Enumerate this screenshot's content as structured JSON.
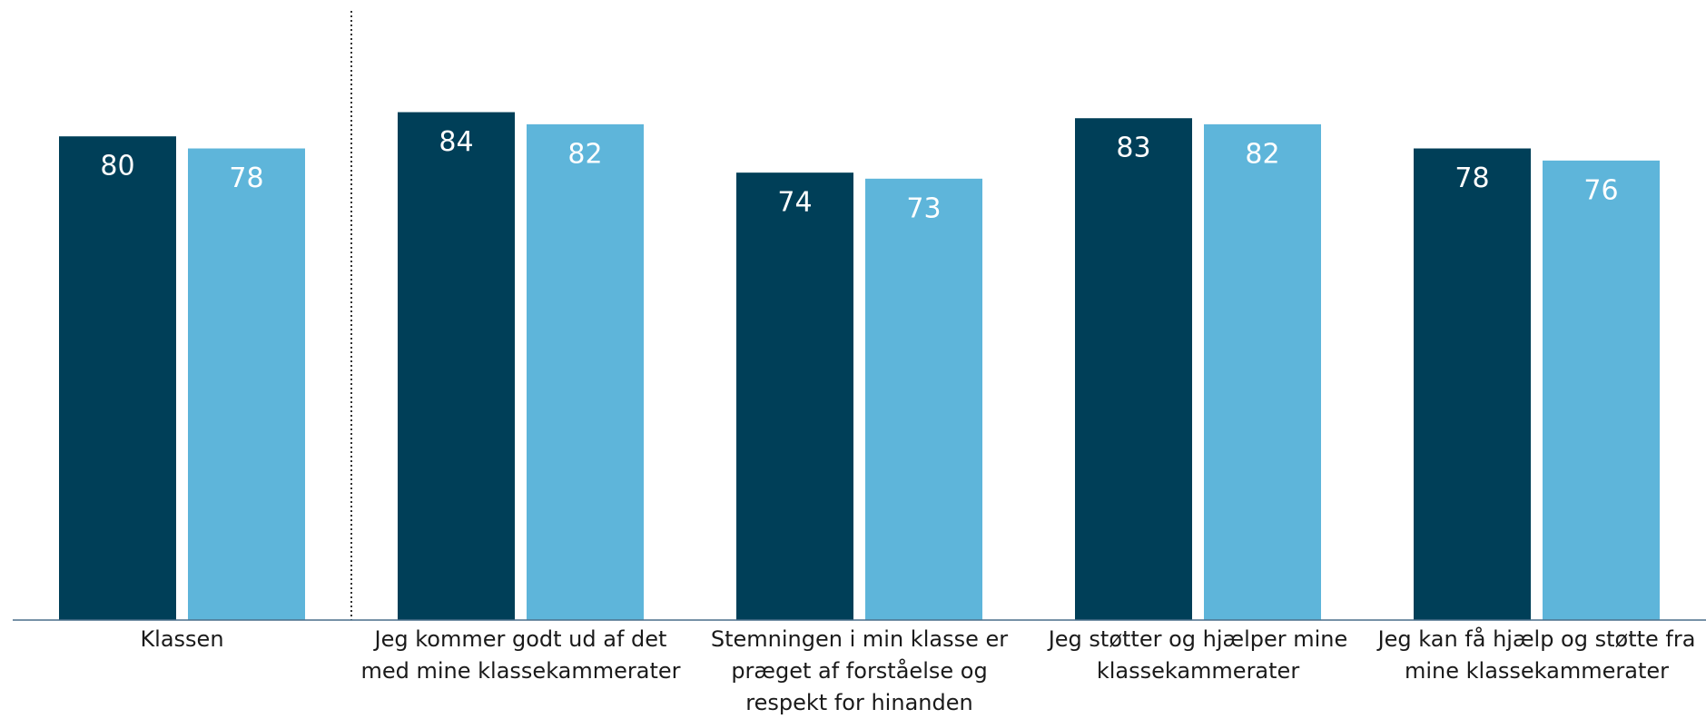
{
  "chart_data": {
    "type": "bar",
    "categories": [
      "Klassen",
      "Jeg kommer godt ud af det med mine klassekammerater",
      "Stemningen i min klasse er præget af forståelse og respekt for hinanden",
      "Jeg støtter og hjælper mine klassekammerater",
      "Jeg kan få hjælp og støtte fra mine klassekammerater"
    ],
    "series": [
      {
        "color": "#003f58",
        "values": [
          80,
          84,
          74,
          83,
          78
        ]
      },
      {
        "color": "#5eb5da",
        "values": [
          78,
          82,
          73,
          82,
          76
        ]
      }
    ],
    "ylim": [
      0,
      100
    ]
  }
}
